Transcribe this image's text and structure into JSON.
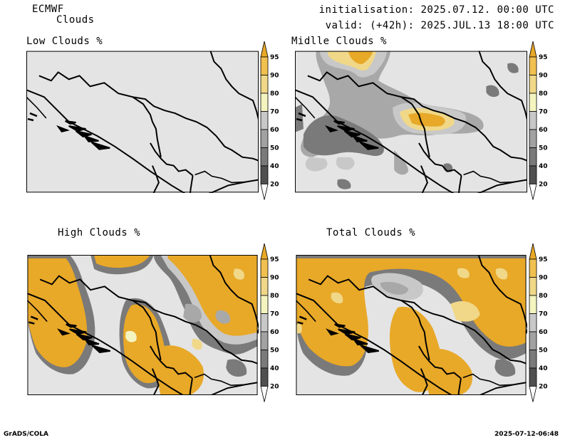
{
  "header": {
    "model": "ECMWF",
    "variable": "Clouds",
    "initialisation": "initialisation: 2025.07.12. 00:00 UTC",
    "valid": "valid: (+42h): 2025.JUL.13 18:00 UTC"
  },
  "panels": [
    {
      "id": "low",
      "title": "Low Clouds %"
    },
    {
      "id": "mid",
      "title": "Midlle Clouds %"
    },
    {
      "id": "high",
      "title": "High Clouds %"
    },
    {
      "id": "total",
      "title": "Total Clouds %"
    }
  ],
  "colorbar": {
    "tick_labels": [
      "20",
      "40",
      "50",
      "60",
      "70",
      "80",
      "90",
      "95"
    ],
    "colors": [
      "#ffffff",
      "#505050",
      "#7a7a7a",
      "#a2a2a2",
      "#c8c8c8",
      "#f4f4c0",
      "#f0d888",
      "#f0c050",
      "#e8a828"
    ]
  },
  "footer": {
    "left": "GrADS/COLA",
    "right": "2025-07-12-06:48"
  }
}
